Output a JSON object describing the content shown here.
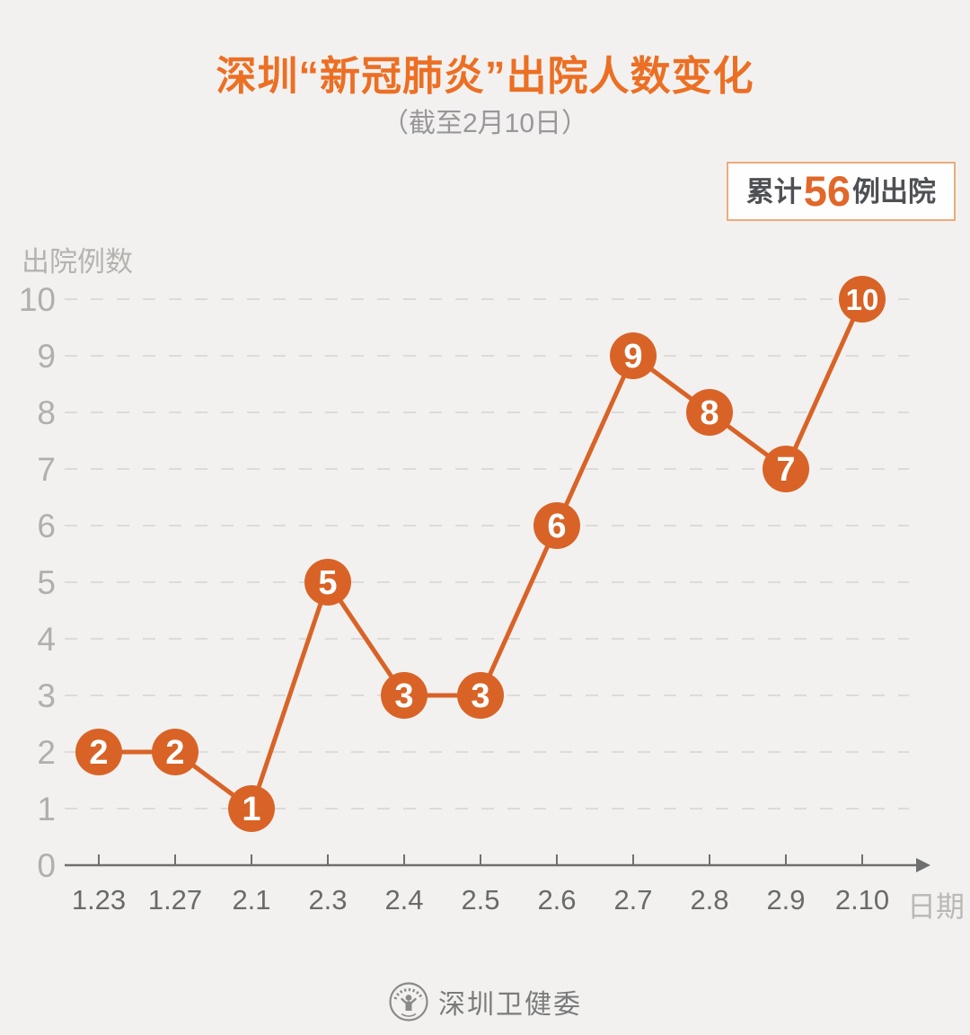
{
  "page": {
    "background": "#f2f1ef"
  },
  "header": {
    "title": "深圳“新冠肺炎”出院人数变化",
    "subtitle": "（截至2月10日）"
  },
  "badge": {
    "prefix": "累计",
    "count": "56",
    "suffix": "例出院"
  },
  "footer": {
    "source": "深圳卫健委",
    "logo": "shenzhen-health-commission-seal"
  },
  "colors": {
    "accent_orange": "#ec6f24",
    "series_orange": "#d96327",
    "badge_count_orange": "#e2672a",
    "badge_border": "#ecab7c",
    "grid_gray": "#dcdbd8",
    "axis_gray": "#6f6f6f",
    "ytick_gray": "#b1afad",
    "xtick_gray": "#6a6a6a",
    "background": "#f2f1ef"
  },
  "chart_data": {
    "type": "line",
    "title": "深圳“新冠肺炎”出院人数变化",
    "subtitle": "（截至2月10日）",
    "categories": [
      "1.23",
      "1.27",
      "2.1",
      "2.3",
      "2.4",
      "2.5",
      "2.6",
      "2.7",
      "2.8",
      "2.9",
      "2.10"
    ],
    "values": [
      2,
      2,
      1,
      5,
      3,
      3,
      6,
      9,
      8,
      7,
      10
    ],
    "cumulative_total": 56,
    "xlabel": "日期",
    "ylabel": "出院例数",
    "ylim": [
      0,
      10
    ],
    "yticks": [
      0,
      1,
      2,
      3,
      4,
      5,
      6,
      7,
      8,
      9,
      10
    ],
    "grid": "horizontal-dashed",
    "legend": "none",
    "marker_style": "filled-circle-with-value-label"
  }
}
